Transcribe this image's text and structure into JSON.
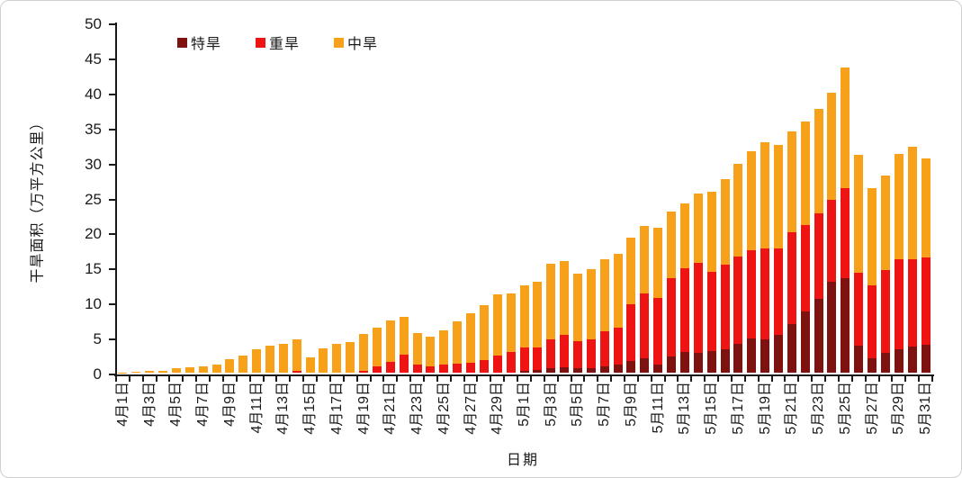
{
  "chart_data": {
    "type": "bar",
    "stacked": true,
    "xlabel": "日期",
    "ylabel": "干旱面积（万平方公里）",
    "ylim": [
      0,
      50
    ],
    "ytick_step": 5,
    "x_label_interval": 2,
    "grid": false,
    "legend_position": "top-inside",
    "categories": [
      "4月1日",
      "4月2日",
      "4月3日",
      "4月4日",
      "4月5日",
      "4月6日",
      "4月7日",
      "4月8日",
      "4月9日",
      "4月10日",
      "4月11日",
      "4月12日",
      "4月13日",
      "4月14日",
      "4月15日",
      "4月16日",
      "4月17日",
      "4月18日",
      "4月19日",
      "4月20日",
      "4月21日",
      "4月22日",
      "4月23日",
      "4月24日",
      "4月25日",
      "4月26日",
      "4月27日",
      "4月28日",
      "4月29日",
      "4月30日",
      "5月1日",
      "5月2日",
      "5月3日",
      "5月4日",
      "5月5日",
      "5月6日",
      "5月7日",
      "5月8日",
      "5月9日",
      "5月10日",
      "5月11日",
      "5月12日",
      "5月13日",
      "5月14日",
      "5月15日",
      "5月16日",
      "5月17日",
      "5月18日",
      "5月19日",
      "5月20日",
      "5月21日",
      "5月22日",
      "5月23日",
      "5月24日",
      "5月25日",
      "5月26日",
      "5月27日",
      "5月28日",
      "5月29日",
      "5月30日",
      "5月31日"
    ],
    "series": [
      {
        "name": "特旱",
        "color": "#7e1210",
        "values": [
          0,
          0,
          0,
          0,
          0,
          0,
          0,
          0,
          0,
          0,
          0,
          0,
          0,
          0,
          0,
          0,
          0,
          0,
          0,
          0,
          0,
          0,
          0,
          0,
          0,
          0,
          0,
          0,
          0,
          0,
          0.3,
          0.35,
          0.6,
          0.8,
          0.65,
          0.7,
          0.95,
          1.1,
          1.7,
          2.0,
          1.2,
          2.3,
          2.9,
          2.8,
          3.1,
          3.3,
          4.1,
          4.9,
          4.8,
          5.4,
          7.0,
          8.8,
          10.6,
          13.0,
          13.5,
          3.9,
          2.1,
          2.8,
          3.4,
          3.7,
          4.0
        ]
      },
      {
        "name": "重旱",
        "color": "#ee1414",
        "values": [
          0,
          0,
          0,
          0,
          0,
          0,
          0,
          0,
          0,
          0,
          0,
          0,
          0,
          0.3,
          0,
          0,
          0,
          0,
          0.3,
          0.9,
          1.5,
          2.6,
          1.2,
          0.9,
          1.1,
          1.3,
          1.4,
          1.8,
          2.5,
          3.0,
          3.3,
          3.2,
          4.2,
          4.6,
          3.8,
          4.0,
          5.0,
          5.3,
          8.1,
          9.3,
          9.5,
          11.2,
          12.0,
          12.9,
          11.3,
          12.1,
          12.5,
          12.6,
          13.0,
          12.3,
          13.0,
          12.3,
          12.2,
          11.7,
          12.8,
          10.4,
          10.4,
          11.8,
          12.8,
          12.5,
          12.5
        ]
      },
      {
        "name": "中旱",
        "color": "#f7a11b",
        "values": [
          0.05,
          0.1,
          0.25,
          0.3,
          0.7,
          0.75,
          0.9,
          1.2,
          1.9,
          2.4,
          3.3,
          3.9,
          4.1,
          4.5,
          2.2,
          3.5,
          4.1,
          4.4,
          5.2,
          5.5,
          6.0,
          5.4,
          4.4,
          4.3,
          4.9,
          6.0,
          7.1,
          7.8,
          8.7,
          8.3,
          8.9,
          9.45,
          10.8,
          10.6,
          9.65,
          10.1,
          10.25,
          10.6,
          9.5,
          9.6,
          10.0,
          9.5,
          9.3,
          9.9,
          11.5,
          12.2,
          13.2,
          14.1,
          15.1,
          14.8,
          14.4,
          14.8,
          14.9,
          15.3,
          17.3,
          16.8,
          13.8,
          13.5,
          15.1,
          16.1,
          14.1
        ]
      }
    ]
  }
}
